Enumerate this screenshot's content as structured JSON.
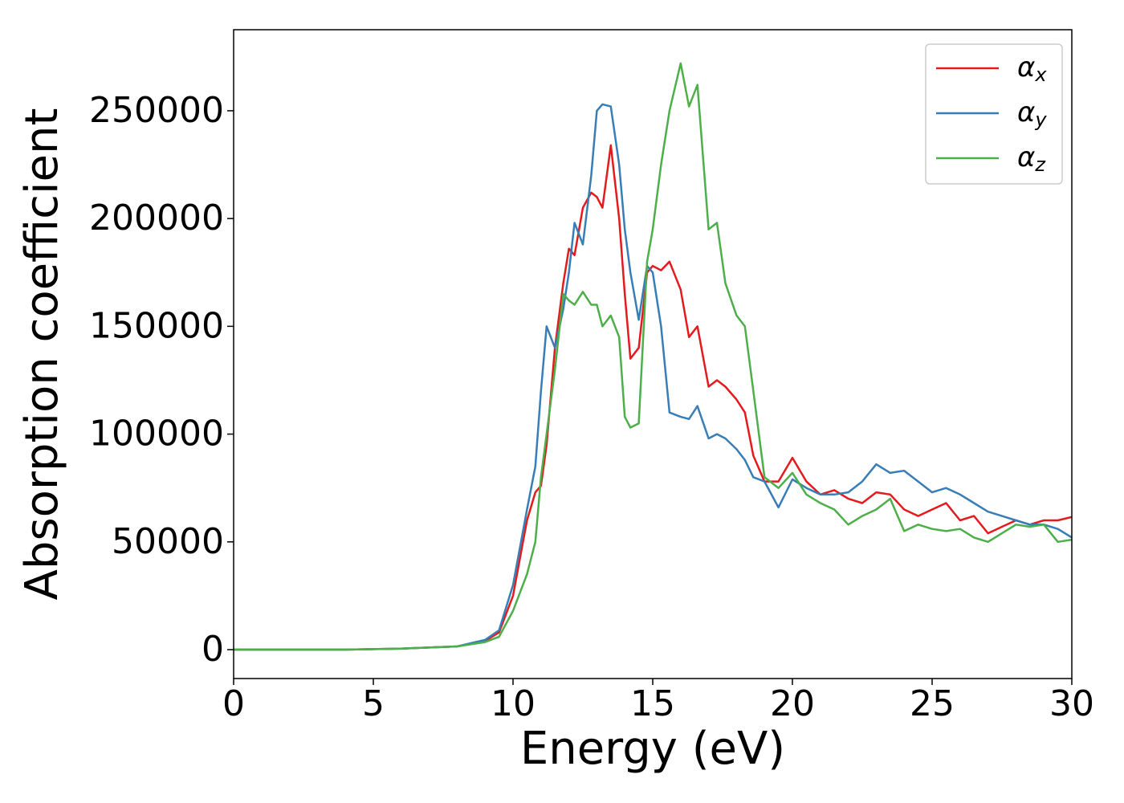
{
  "chart_data": {
    "type": "line",
    "xlabel": "Energy (eV)",
    "ylabel": "Absorption coefficient",
    "x": [
      0,
      2,
      4,
      6,
      8,
      9,
      9.5,
      10,
      10.5,
      10.8,
      11,
      11.2,
      11.5,
      11.8,
      12,
      12.2,
      12.5,
      12.8,
      13,
      13.2,
      13.5,
      13.8,
      14,
      14.2,
      14.5,
      14.8,
      15,
      15.3,
      15.6,
      16,
      16.3,
      16.6,
      17,
      17.3,
      17.6,
      18,
      18.3,
      18.6,
      19,
      19.5,
      20,
      20.5,
      21,
      21.5,
      22,
      22.5,
      23,
      23.5,
      24,
      24.5,
      25,
      25.5,
      26,
      26.5,
      27,
      27.5,
      28,
      28.5,
      29,
      29.5,
      30
    ],
    "series": [
      {
        "name": "αx",
        "color": "#e41a1c",
        "values": [
          0,
          0,
          0,
          500,
          1500,
          4000,
          8000,
          25000,
          60000,
          73000,
          76000,
          95000,
          140000,
          170000,
          186000,
          183000,
          205000,
          212000,
          210000,
          205000,
          234000,
          200000,
          165000,
          135000,
          140000,
          175000,
          178000,
          176000,
          180000,
          167000,
          145000,
          150000,
          122000,
          125000,
          122000,
          116000,
          110000,
          90000,
          78000,
          78000,
          89000,
          78000,
          72000,
          74000,
          70000,
          68000,
          73000,
          72000,
          65000,
          62000,
          65000,
          68000,
          60000,
          62000,
          54000,
          57000,
          60000,
          58000,
          60000,
          60000,
          61500
        ]
      },
      {
        "name": "αy",
        "color": "#377eb8",
        "values": [
          0,
          0,
          0,
          500,
          1500,
          4500,
          9000,
          30000,
          65000,
          85000,
          120000,
          150000,
          140000,
          158000,
          175000,
          198000,
          188000,
          220000,
          250000,
          253000,
          252000,
          225000,
          195000,
          175000,
          153000,
          178000,
          175000,
          150000,
          110000,
          108000,
          107000,
          113000,
          98000,
          100000,
          98000,
          93000,
          88000,
          80000,
          78000,
          66000,
          79000,
          75000,
          72000,
          72000,
          73000,
          78000,
          86000,
          82000,
          83000,
          78000,
          73000,
          75000,
          72000,
          68000,
          64000,
          62000,
          60000,
          58000,
          58000,
          56000,
          52000
        ]
      },
      {
        "name": "αz",
        "color": "#4daf4a",
        "values": [
          0,
          0,
          0,
          500,
          1500,
          3500,
          6000,
          18000,
          35000,
          50000,
          80000,
          100000,
          130000,
          165000,
          162000,
          160000,
          166000,
          160000,
          160000,
          150000,
          155000,
          145000,
          108000,
          103000,
          105000,
          180000,
          195000,
          225000,
          250000,
          272000,
          252000,
          262000,
          195000,
          198000,
          170000,
          155000,
          150000,
          120000,
          80000,
          75000,
          82000,
          72000,
          68000,
          65000,
          58000,
          62000,
          65000,
          70000,
          55000,
          58000,
          56000,
          55000,
          56000,
          52000,
          50000,
          54000,
          58000,
          57000,
          58000,
          50000,
          51000
        ]
      }
    ],
    "xlim": [
      0,
      30
    ],
    "xticks": [
      0,
      5,
      10,
      15,
      20,
      25,
      30
    ],
    "ylim": [
      -13400,
      287600
    ],
    "yticks": [
      0,
      50000,
      100000,
      150000,
      200000,
      250000
    ],
    "grid": false,
    "legend": "upper right"
  }
}
